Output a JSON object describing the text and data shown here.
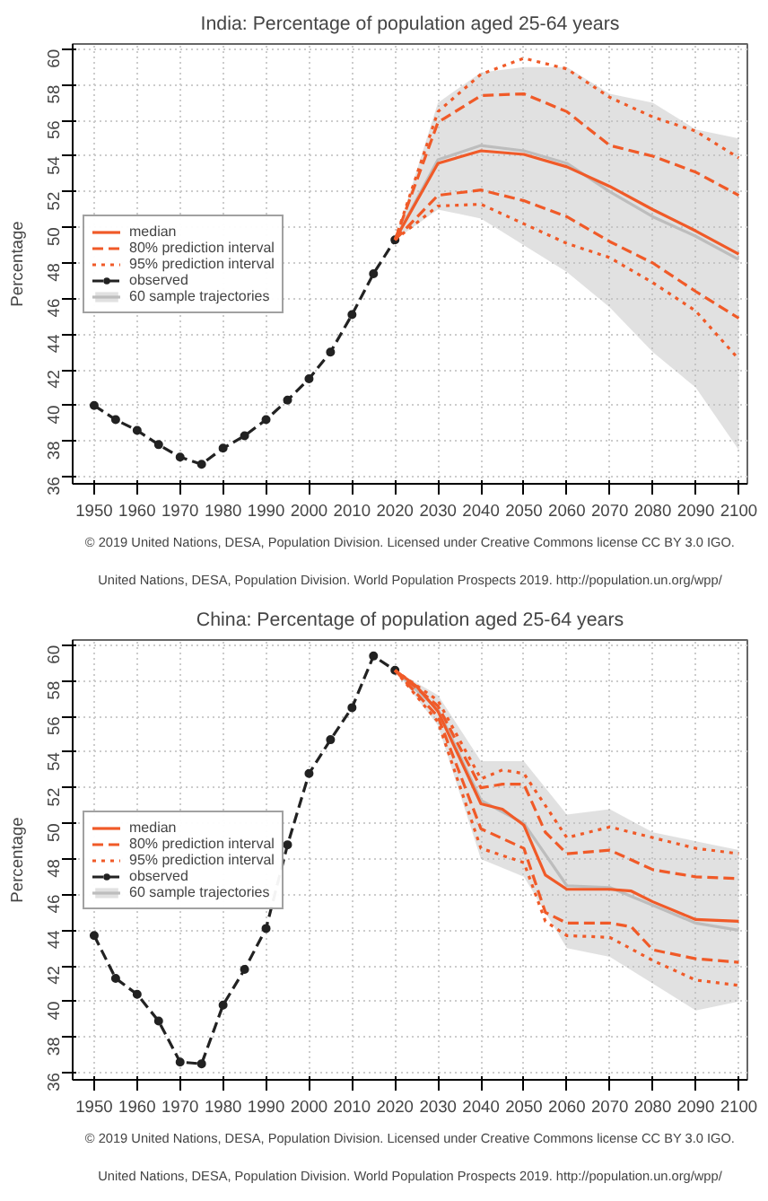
{
  "chart_data": [
    {
      "type": "line",
      "title": "India: Percentage of population aged 25-64 years",
      "ylabel": "Percentage",
      "xlim": [
        1945,
        2102
      ],
      "ylim": [
        35.6,
        60.3
      ],
      "xticks": [
        1950,
        1960,
        1970,
        1980,
        1990,
        2000,
        2010,
        2020,
        2030,
        2040,
        2050,
        2060,
        2070,
        2080,
        2090,
        2100
      ],
      "yticks": [
        36,
        38,
        40,
        42,
        44,
        46,
        48,
        50,
        52,
        54,
        56,
        58,
        60
      ],
      "grid": true,
      "legend": "left",
      "series": [
        {
          "name": "median",
          "color": "#f05a28",
          "line_style": "solid",
          "x": [
            2020,
            2030,
            2040,
            2050,
            2060,
            2070,
            2080,
            2090,
            2100
          ],
          "values": [
            49.3,
            53.6,
            54.3,
            54.1,
            53.4,
            52.3,
            51.0,
            49.8,
            48.5
          ]
        },
        {
          "name": "80% prediction interval",
          "color": "#f05a28",
          "line_style": "dashed",
          "x": [
            2020,
            2030,
            2040,
            2050,
            2060,
            2070,
            2080,
            2090,
            2100
          ],
          "values": [
            49.3,
            55.9,
            57.4,
            57.5,
            56.5,
            54.6,
            54.0,
            53.1,
            51.8
          ]
        },
        {
          "color": "#f05a28",
          "line_style": "dashed",
          "x": [
            2020,
            2030,
            2040,
            2050,
            2060,
            2070,
            2080,
            2090,
            2100
          ],
          "values": [
            49.3,
            51.8,
            52.1,
            51.5,
            50.6,
            49.2,
            48.0,
            46.4,
            44.9
          ]
        },
        {
          "name": "95% prediction interval",
          "color": "#f05a28",
          "line_style": "dotted",
          "x": [
            2020,
            2030,
            2040,
            2050,
            2060,
            2070,
            2080,
            2090,
            2100
          ],
          "values": [
            49.3,
            56.5,
            58.6,
            59.5,
            58.9,
            57.3,
            56.2,
            55.4,
            53.9
          ]
        },
        {
          "color": "#f05a28",
          "line_style": "dotted",
          "x": [
            2020,
            2030,
            2040,
            2050,
            2060,
            2070,
            2080,
            2090,
            2100
          ],
          "values": [
            49.3,
            51.2,
            51.3,
            50.2,
            49.1,
            48.3,
            46.9,
            45.3,
            42.6
          ]
        },
        {
          "name": "observed",
          "color": "#222222",
          "line_style": "dashed",
          "marker": "circle",
          "x": [
            1950,
            1955,
            1960,
            1965,
            1970,
            1975,
            1980,
            1985,
            1990,
            1995,
            2000,
            2005,
            2010,
            2015,
            2020
          ],
          "values": [
            40.0,
            39.2,
            38.6,
            37.8,
            37.1,
            36.7,
            37.6,
            38.3,
            39.2,
            40.3,
            41.5,
            43.0,
            45.1,
            47.4,
            49.3
          ]
        },
        {
          "name": "60 sample trajectories",
          "color": "#bdbdbd",
          "line_style": "solid",
          "x": [
            2020,
            2030,
            2040,
            2050,
            2060,
            2070,
            2080,
            2090,
            2100
          ],
          "values": [
            49.3,
            53.8,
            54.6,
            54.3,
            53.6,
            52.0,
            50.6,
            49.5,
            48.2
          ],
          "lower": [
            49.3,
            51.0,
            50.5,
            49.0,
            47.5,
            45.5,
            43.0,
            41.0,
            37.5
          ],
          "upper": [
            49.3,
            57.0,
            58.7,
            59.0,
            59.0,
            57.5,
            57.0,
            55.5,
            55.0
          ]
        }
      ],
      "annotations": [
        "© 2019 United Nations, DESA, Population Division. Licensed under Creative Commons license CC BY 3.0 IGO.",
        "United Nations, DESA, Population Division. World Population Prospects 2019. http://population.un.org/wpp/"
      ]
    },
    {
      "type": "line",
      "title": "China: Percentage of population aged 25-64 years",
      "ylabel": "Percentage",
      "xlim": [
        1945,
        2102
      ],
      "ylim": [
        35.6,
        60.3
      ],
      "xticks": [
        1950,
        1960,
        1970,
        1980,
        1990,
        2000,
        2010,
        2020,
        2030,
        2040,
        2050,
        2060,
        2070,
        2080,
        2090,
        2100
      ],
      "yticks": [
        36,
        38,
        40,
        42,
        44,
        46,
        48,
        50,
        52,
        54,
        56,
        58,
        60
      ],
      "grid": true,
      "legend": "left",
      "series": [
        {
          "name": "median",
          "color": "#f05a28",
          "line_style": "solid",
          "x": [
            2020,
            2025,
            2030,
            2035,
            2040,
            2045,
            2050,
            2055,
            2060,
            2070,
            2075,
            2080,
            2090,
            2100
          ],
          "values": [
            58.6,
            57.7,
            56.3,
            53.7,
            51.1,
            50.8,
            49.9,
            47.1,
            46.3,
            46.3,
            46.2,
            45.6,
            44.6,
            44.5
          ]
        },
        {
          "name": "80% prediction interval",
          "color": "#f05a28",
          "line_style": "dashed",
          "x": [
            2020,
            2030,
            2040,
            2045,
            2050,
            2055,
            2060,
            2070,
            2080,
            2090,
            2100
          ],
          "values": [
            58.6,
            56.6,
            52.0,
            52.2,
            52.2,
            49.5,
            48.3,
            48.5,
            47.4,
            47.0,
            46.9
          ]
        },
        {
          "color": "#f05a28",
          "line_style": "dashed",
          "x": [
            2020,
            2030,
            2040,
            2050,
            2055,
            2060,
            2070,
            2075,
            2080,
            2090,
            2100
          ],
          "values": [
            58.6,
            56.0,
            49.7,
            48.6,
            45.0,
            44.4,
            44.4,
            44.2,
            42.9,
            42.4,
            42.2
          ]
        },
        {
          "name": "95% prediction interval",
          "color": "#f05a28",
          "line_style": "dotted",
          "x": [
            2020,
            2030,
            2040,
            2045,
            2050,
            2060,
            2070,
            2080,
            2090,
            2100
          ],
          "values": [
            58.6,
            56.9,
            52.5,
            53.0,
            52.8,
            49.2,
            49.8,
            49.2,
            48.6,
            48.3
          ]
        },
        {
          "color": "#f05a28",
          "line_style": "dotted",
          "x": [
            2020,
            2030,
            2040,
            2050,
            2055,
            2060,
            2070,
            2080,
            2090,
            2100
          ],
          "values": [
            58.6,
            55.7,
            48.6,
            47.8,
            44.5,
            43.7,
            43.6,
            42.3,
            41.2,
            40.9
          ]
        },
        {
          "name": "observed",
          "color": "#222222",
          "line_style": "dashed",
          "marker": "circle",
          "x": [
            1950,
            1955,
            1960,
            1965,
            1970,
            1975,
            1980,
            1985,
            1990,
            1995,
            2000,
            2005,
            2010,
            2015,
            2020
          ],
          "values": [
            43.7,
            41.3,
            40.4,
            38.9,
            36.6,
            36.5,
            39.8,
            41.8,
            44.1,
            48.8,
            52.8,
            54.7,
            56.5,
            59.4,
            58.6
          ]
        },
        {
          "name": "60 sample trajectories",
          "color": "#bdbdbd",
          "line_style": "solid",
          "x": [
            2020,
            2030,
            2040,
            2050,
            2060,
            2070,
            2080,
            2090,
            2100
          ],
          "values": [
            58.6,
            56.4,
            51.3,
            50.0,
            46.5,
            46.4,
            45.4,
            44.4,
            44.0
          ],
          "lower": [
            58.6,
            55.5,
            48.0,
            47.0,
            43.0,
            42.5,
            41.0,
            39.5,
            40.0
          ],
          "upper": [
            58.6,
            57.2,
            53.5,
            53.5,
            50.5,
            50.8,
            49.5,
            49.0,
            48.5
          ]
        }
      ],
      "annotations": [
        "© 2019 United Nations, DESA, Population Division. Licensed under Creative Commons license CC BY 3.0 IGO.",
        "United Nations, DESA, Population Division. World Population Prospects 2019. http://population.un.org/wpp/"
      ]
    }
  ]
}
